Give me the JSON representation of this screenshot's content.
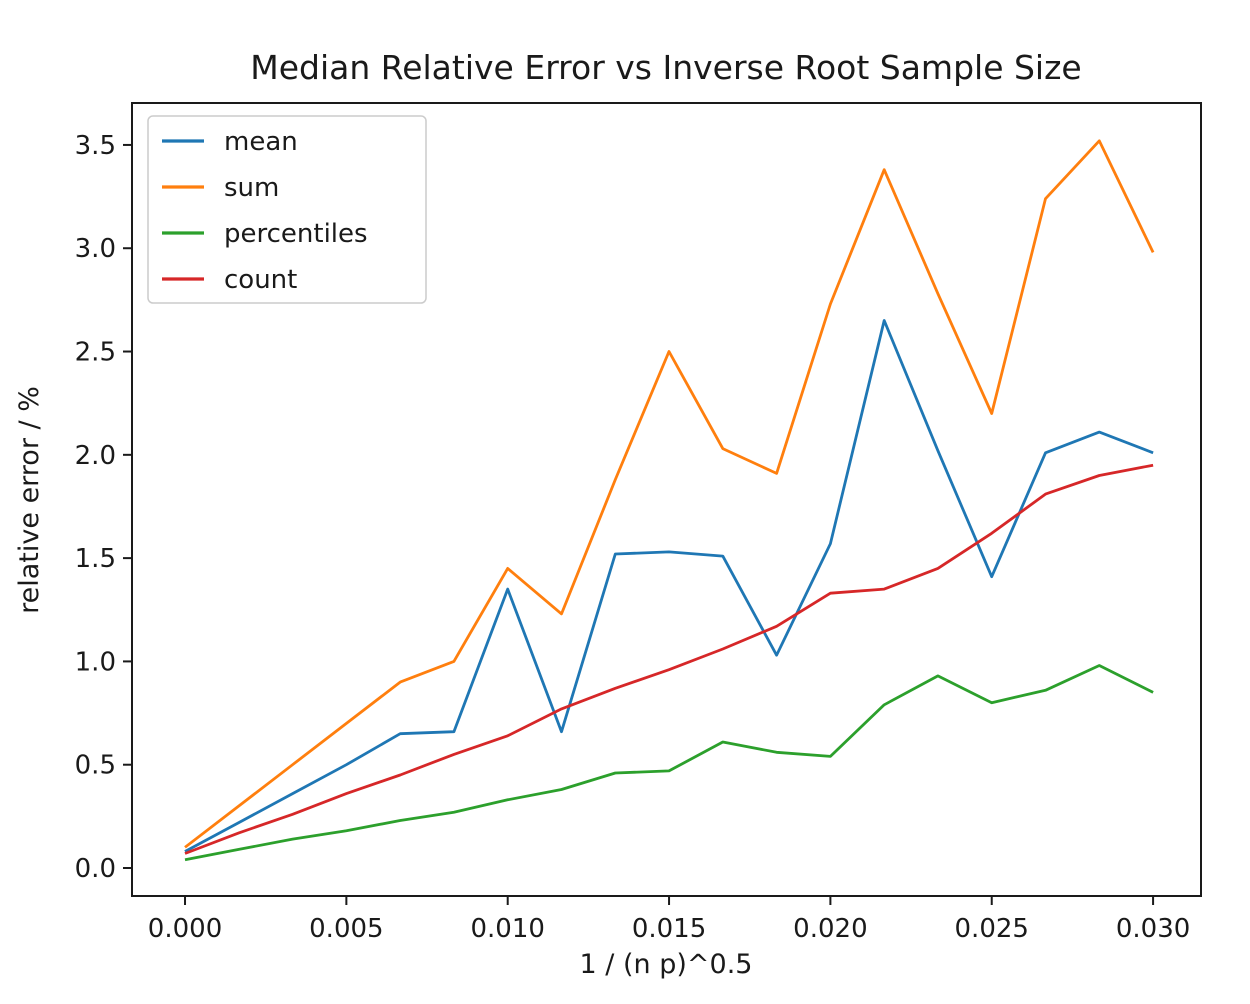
{
  "chart_data": {
    "type": "line",
    "title": "Median Relative Error vs Inverse Root Sample Size",
    "xlabel": "1 / (n p)^0.5",
    "ylabel": "relative error / %",
    "x": [
      0.0,
      0.001667,
      0.003333,
      0.005,
      0.006667,
      0.008333,
      0.01,
      0.011667,
      0.013333,
      0.015,
      0.016667,
      0.018333,
      0.02,
      0.021667,
      0.023333,
      0.025,
      0.026667,
      0.028333,
      0.03
    ],
    "series": [
      {
        "name": "mean",
        "color": "#1f77b4",
        "values": [
          0.08,
          0.22,
          0.36,
          0.5,
          0.65,
          0.66,
          1.35,
          0.66,
          1.52,
          1.53,
          1.51,
          1.03,
          1.57,
          2.65,
          2.02,
          1.41,
          2.01,
          2.11,
          2.01
        ]
      },
      {
        "name": "sum",
        "color": "#ff7f0e",
        "values": [
          0.1,
          0.3,
          0.5,
          0.7,
          0.9,
          1.0,
          1.45,
          1.23,
          1.88,
          2.5,
          2.03,
          1.91,
          2.73,
          3.38,
          2.78,
          2.2,
          3.24,
          3.52,
          2.98
        ]
      },
      {
        "name": "percentiles",
        "color": "#2ca02c",
        "values": [
          0.04,
          0.09,
          0.14,
          0.18,
          0.23,
          0.27,
          0.33,
          0.38,
          0.46,
          0.47,
          0.61,
          0.56,
          0.54,
          0.79,
          0.93,
          0.8,
          0.86,
          0.98,
          0.85
        ]
      },
      {
        "name": "count",
        "color": "#d62728",
        "values": [
          0.07,
          0.17,
          0.26,
          0.36,
          0.45,
          0.55,
          0.64,
          0.77,
          0.87,
          0.96,
          1.06,
          1.17,
          1.33,
          1.35,
          1.45,
          1.62,
          1.81,
          1.9,
          1.95
        ]
      }
    ],
    "x_ticks": {
      "values": [
        0.0,
        0.005,
        0.01,
        0.015,
        0.02,
        0.025,
        0.03
      ],
      "labels": [
        "0.000",
        "0.005",
        "0.010",
        "0.015",
        "0.020",
        "0.025",
        "0.030"
      ]
    },
    "y_ticks": {
      "values": [
        0.0,
        0.5,
        1.0,
        1.5,
        2.0,
        2.5,
        3.0,
        3.5
      ],
      "labels": [
        "0.0",
        "0.5",
        "1.0",
        "1.5",
        "2.0",
        "2.5",
        "3.0",
        "3.5"
      ]
    },
    "xlim": [
      -0.001643,
      0.031485
    ],
    "ylim": [
      -0.1355,
      3.703
    ],
    "legend": {
      "position": "upper left"
    },
    "grid": false
  }
}
